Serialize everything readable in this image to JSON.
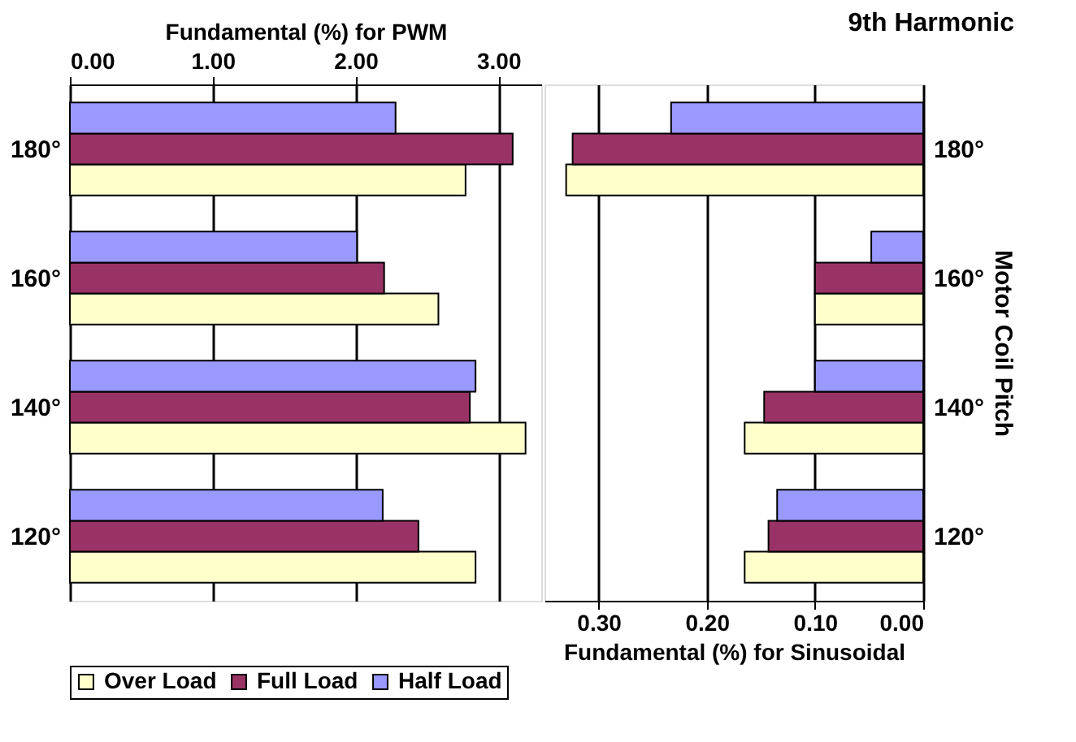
{
  "chart_data": [
    {
      "type": "bar",
      "orientation": "horizontal",
      "xlabel": "Fundamental (%) for PWM",
      "categories": [
        "180°",
        "160°",
        "140°",
        "120°"
      ],
      "xlim": [
        0,
        3.3
      ],
      "xticks": [
        {
          "value": 0,
          "label": "0.00"
        },
        {
          "value": 1,
          "label": "1.00"
        },
        {
          "value": 2,
          "label": "2.00"
        },
        {
          "value": 3,
          "label": "3.00"
        }
      ],
      "grid": "x",
      "legend": "bottom",
      "series": [
        {
          "name": "Over Load",
          "color": "#ffffcc",
          "values": [
            2.77,
            2.58,
            3.19,
            2.84
          ]
        },
        {
          "name": "Full Load",
          "color": "#993366",
          "values": [
            3.1,
            2.2,
            2.8,
            2.44
          ]
        },
        {
          "name": "Half Load",
          "color": "#9999ff",
          "values": [
            2.28,
            2.01,
            2.84,
            2.19
          ]
        }
      ]
    },
    {
      "type": "bar",
      "orientation": "horizontal",
      "title": "9th Harmonic",
      "xlabel": "Fundamental (%) for Sinusoidal",
      "ylabel": "Motor Coil Pitch",
      "categories": [
        "180°",
        "160°",
        "140°",
        "120°"
      ],
      "xlim": [
        0.35,
        0
      ],
      "xticks": [
        {
          "value": 0.3,
          "label": "0.30"
        },
        {
          "value": 0.2,
          "label": "0.20"
        },
        {
          "value": 0.1,
          "label": "0.10"
        },
        {
          "value": 0,
          "label": "0.00"
        }
      ],
      "grid": "x",
      "series": [
        {
          "color": "#ffffcc",
          "values": [
            0.33,
            0.1,
            0.165,
            0.165
          ]
        },
        {
          "color": "#993366",
          "values": [
            0.324,
            0.1,
            0.147,
            0.143
          ]
        },
        {
          "color": "#9999ff",
          "values": [
            0.233,
            0.048,
            0.1,
            0.135
          ]
        }
      ]
    }
  ]
}
